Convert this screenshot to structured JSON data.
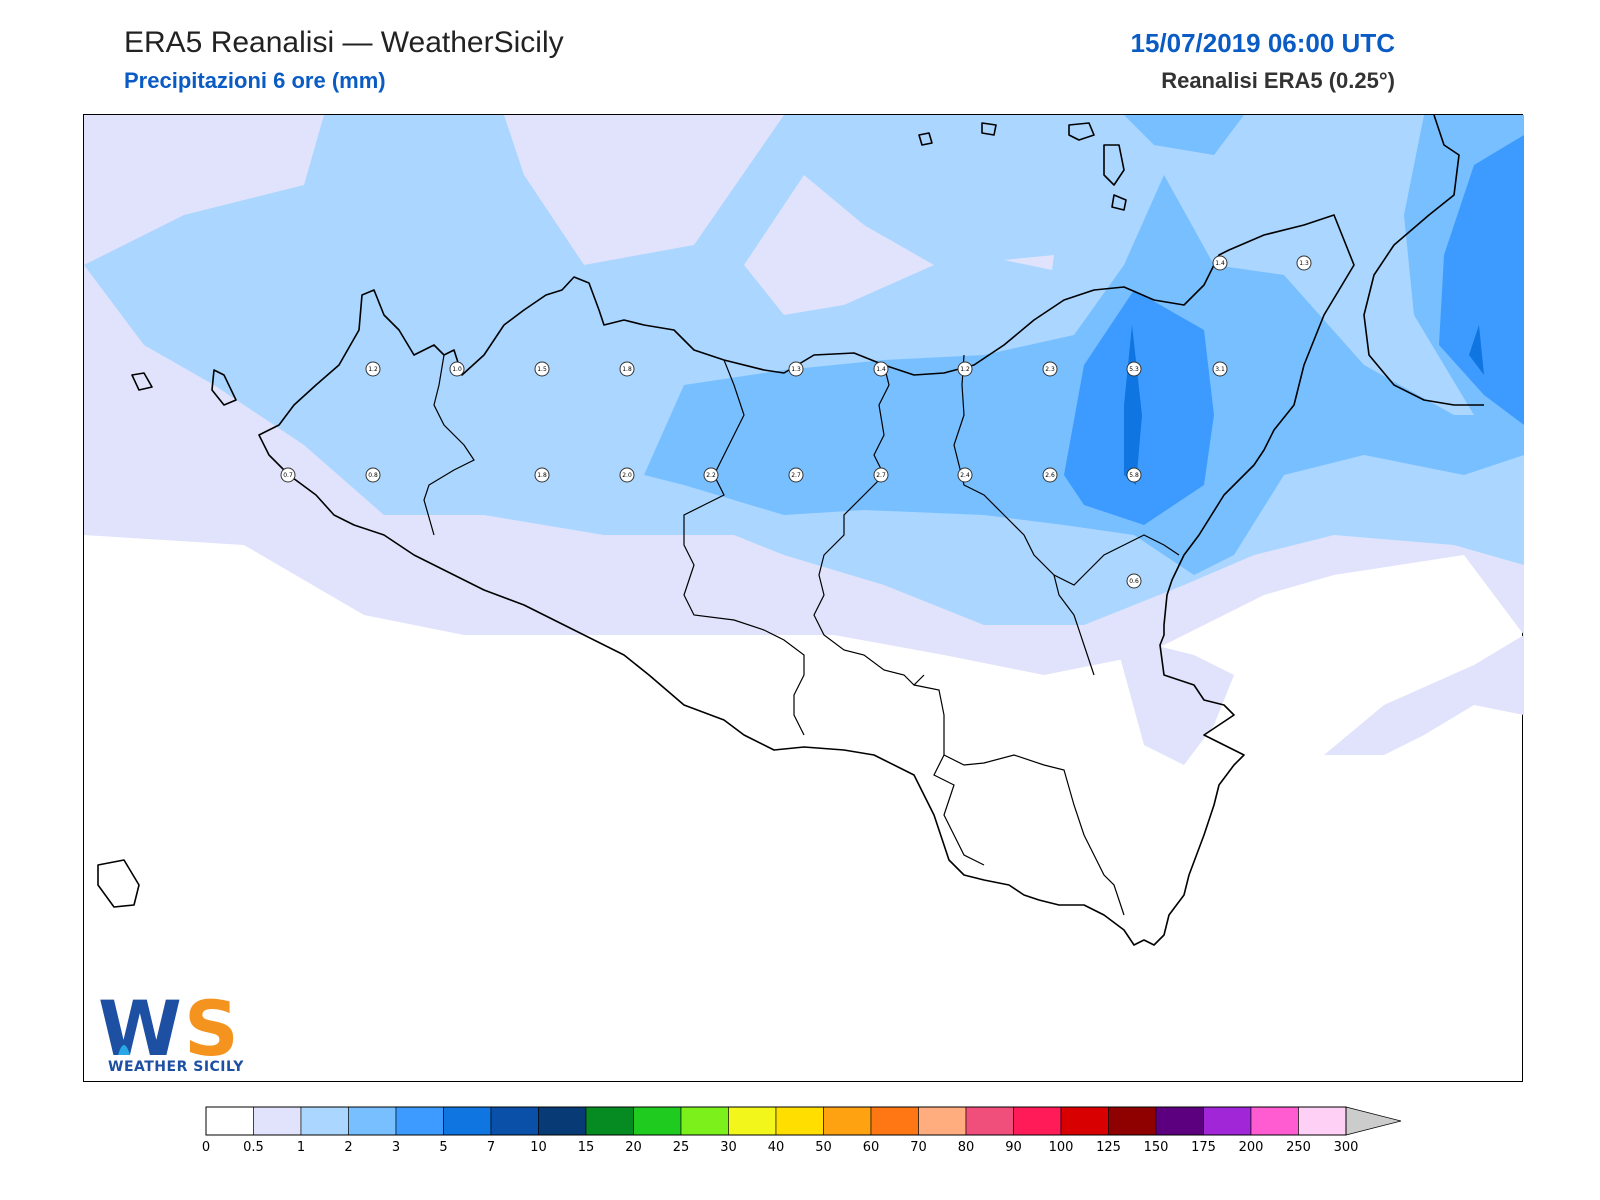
{
  "header": {
    "title": "ERA5 Reanalisi — WeatherSicily",
    "subtitle": "Precipitazioni 6 ore (mm)",
    "datetime": "15/07/2019 06:00 UTC",
    "source": "Reanalisi ERA5 (0.25°)"
  },
  "logo": {
    "letters": "WS",
    "brand": "WEATHER SICILY"
  },
  "map": {
    "region": "Sicily",
    "station_values": [
      "1.4",
      "1.3",
      "1.2",
      "1.0",
      "1.5",
      "1.8",
      "1.3",
      "1.4",
      "1.2",
      "2.3",
      "5.3",
      "3.1",
      "0.7",
      "0.8",
      "1.8",
      "2.0",
      "2.2",
      "2.7",
      "2.7",
      "2.4",
      "2.6",
      "5.8",
      "0.6"
    ]
  },
  "colorbar": {
    "ticks": [
      "0",
      "0.5",
      "1",
      "2",
      "3",
      "5",
      "7",
      "10",
      "15",
      "20",
      "25",
      "30",
      "40",
      "50",
      "60",
      "70",
      "80",
      "90",
      "100",
      "125",
      "150",
      "175",
      "200",
      "250",
      "300"
    ],
    "colors": [
      "#ffffff",
      "#e0e3fb",
      "#aad6ff",
      "#78bfff",
      "#3d9bff",
      "#0f75e0",
      "#0a4fa8",
      "#083a75",
      "#068a22",
      "#1fcb1f",
      "#7bf01a",
      "#f3f61a",
      "#ffde00",
      "#ffa212",
      "#ff7614",
      "#ffad7e",
      "#f04f7c",
      "#ff1b58",
      "#d80000",
      "#8f0000",
      "#5c0080",
      "#a126d8",
      "#ff5cd2",
      "#ffd0f5"
    ],
    "extend_color": "#cccccc"
  }
}
